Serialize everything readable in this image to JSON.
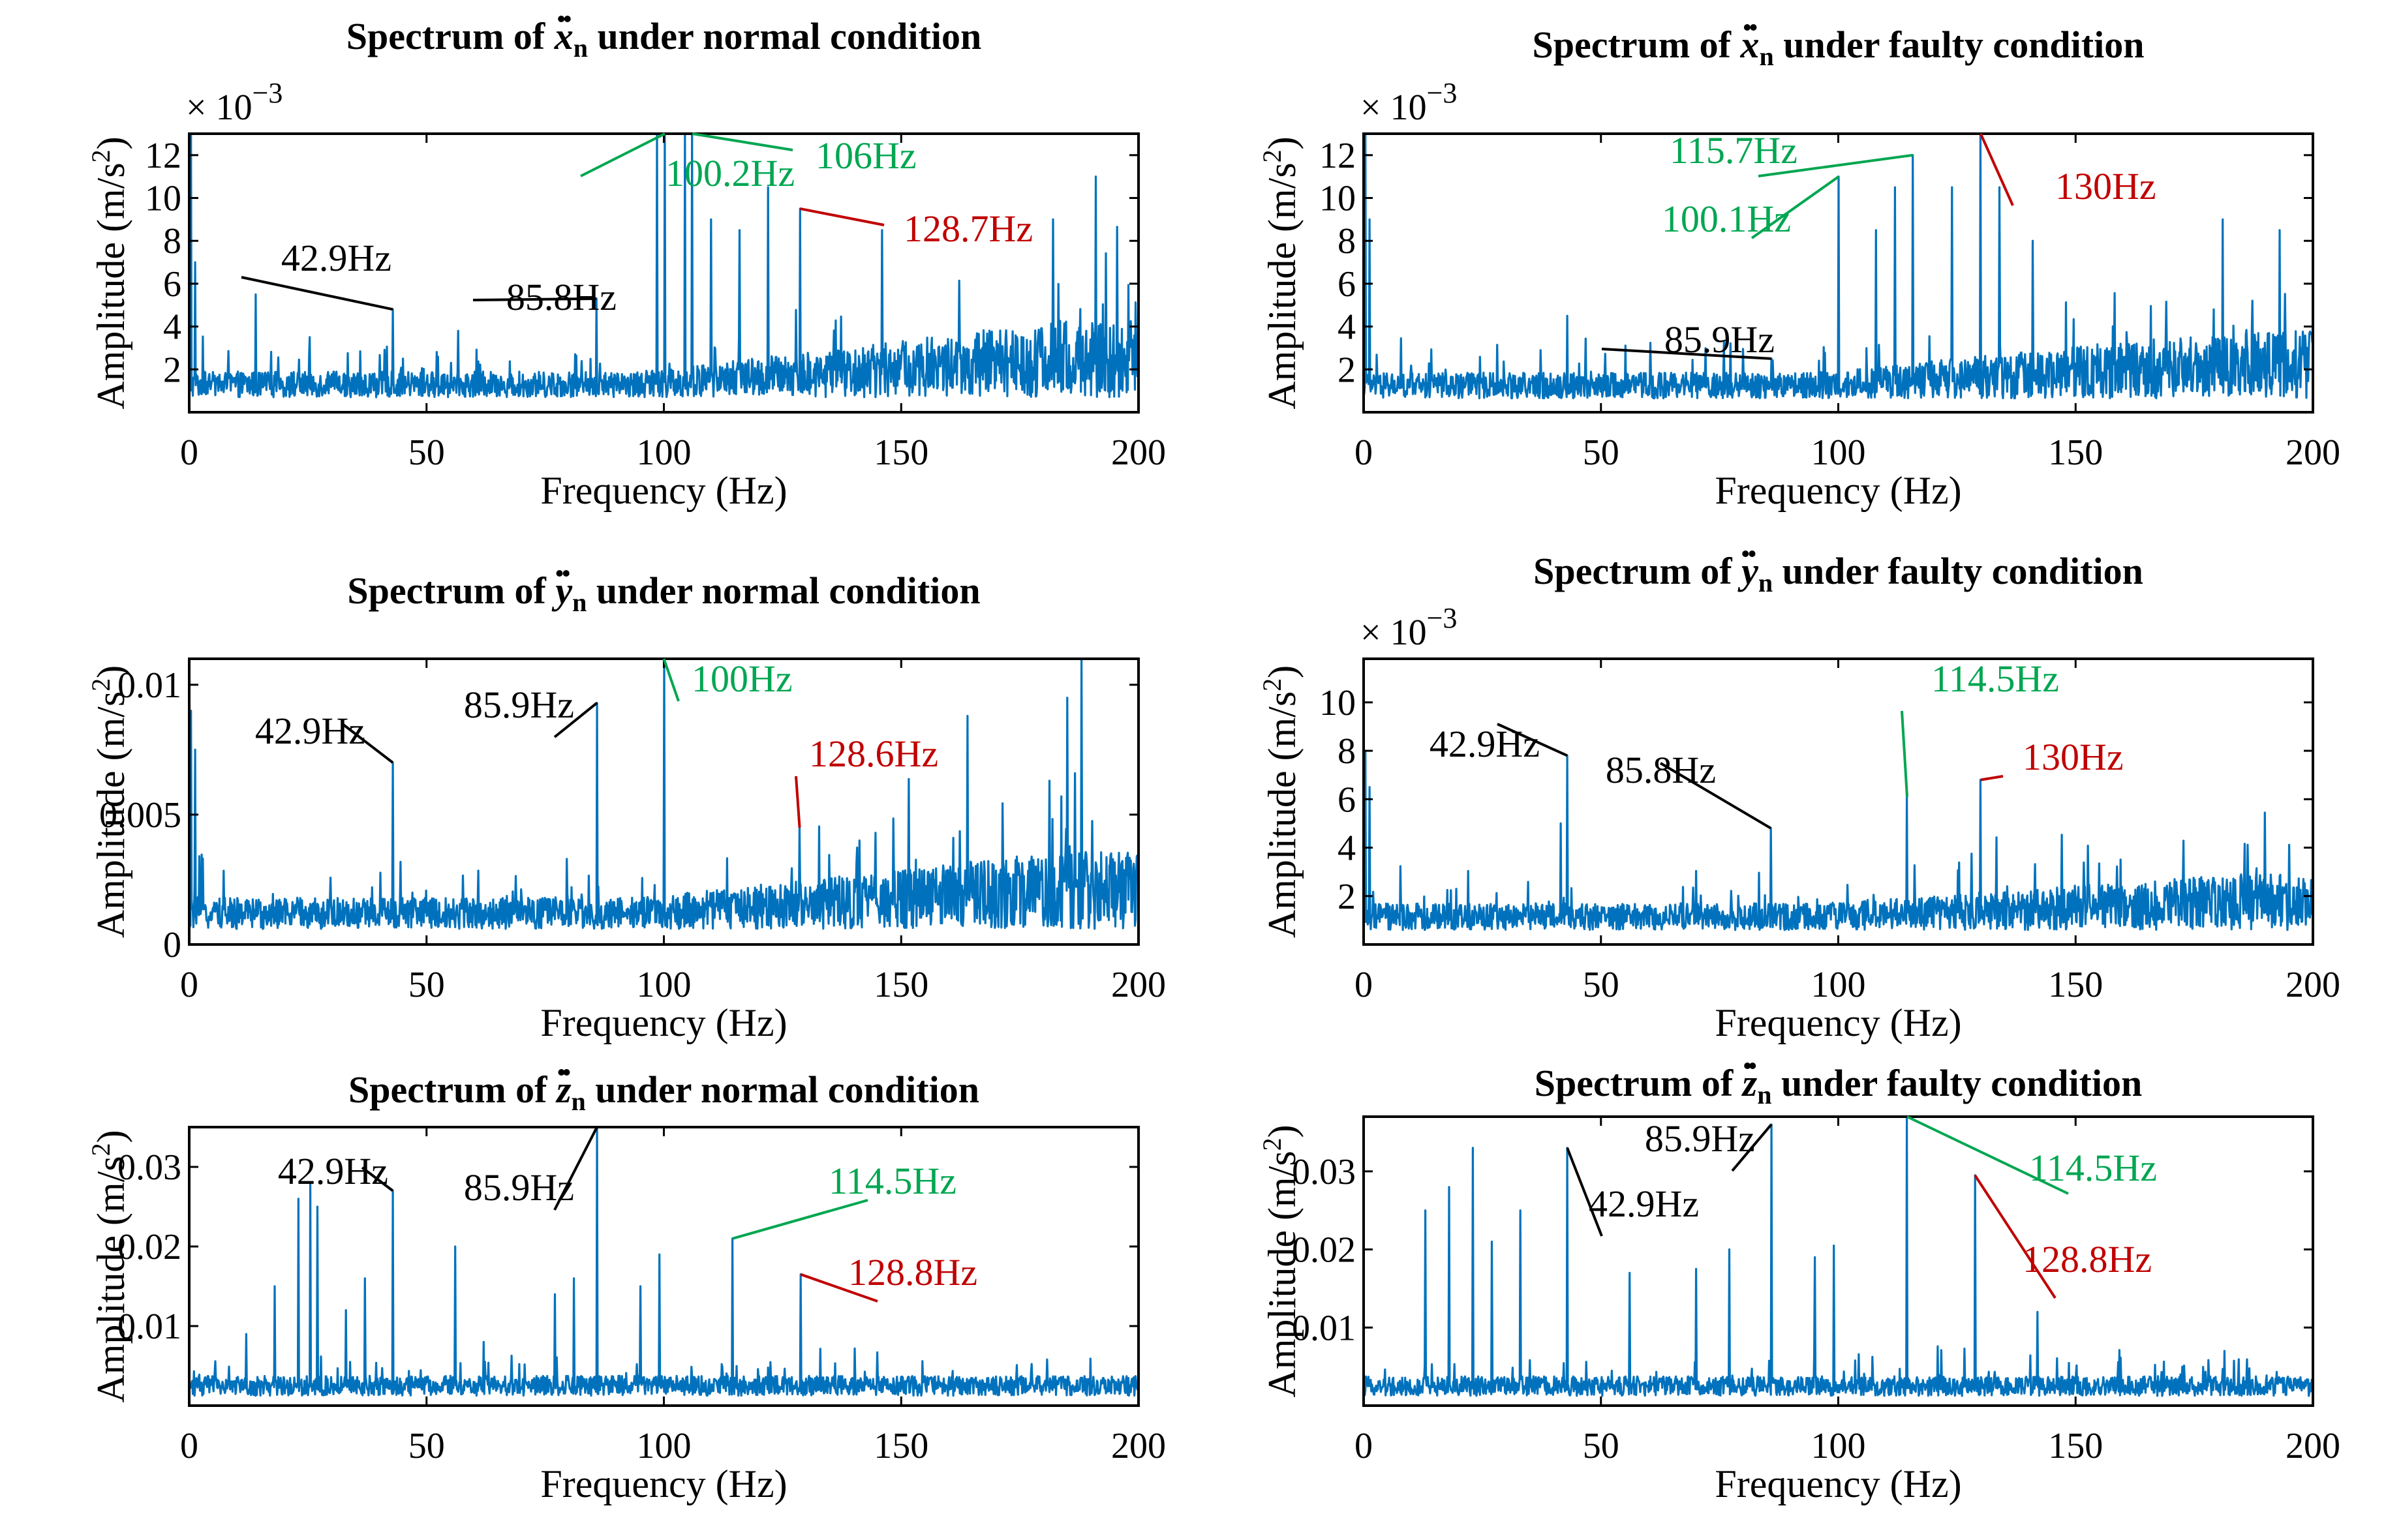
{
  "chart_data": [
    {
      "type": "line",
      "title": {
        "prefix": "Spectrum of ",
        "var": "x",
        "sub": "n",
        "suffix": " under normal condition"
      },
      "xlabel": "Frequency (Hz)",
      "ylabel": "Amplitude (m/s2)",
      "xlim": [
        0,
        200
      ],
      "ylim": [
        0,
        0.013
      ],
      "yscale_label": "× 10−3",
      "xticks": [
        "0",
        "50",
        "100",
        "150",
        "200"
      ],
      "yticks": [
        {
          "v": 0.002,
          "label": "2"
        },
        {
          "v": 0.004,
          "label": "4"
        },
        {
          "v": 0.006,
          "label": "6"
        },
        {
          "v": 0.008,
          "label": "8"
        },
        {
          "v": 0.01,
          "label": "10"
        },
        {
          "v": 0.012,
          "label": "12"
        }
      ],
      "noise": {
        "base": 0.0014,
        "amp": 0.0012,
        "rise": 0.0024
      },
      "peaks": [
        [
          0.4,
          0.013
        ],
        [
          1.2,
          0.007
        ],
        [
          14,
          0.0055
        ],
        [
          42.9,
          0.0048
        ],
        [
          85.8,
          0.0053
        ],
        [
          98.5,
          0.013
        ],
        [
          100.2,
          0.013
        ],
        [
          104.5,
          0.013
        ],
        [
          106,
          0.013
        ],
        [
          110,
          0.009
        ],
        [
          116,
          0.0085
        ],
        [
          122,
          0.0105
        ],
        [
          128.7,
          0.0095
        ],
        [
          146,
          0.0085
        ],
        [
          182,
          0.009
        ],
        [
          191,
          0.011
        ]
      ],
      "annotations": [
        {
          "label": "42.9Hz",
          "x": 42.9,
          "color": "#000000"
        },
        {
          "label": "85.8Hz",
          "x": 85.8,
          "color": "#000000"
        },
        {
          "label": "100.2Hz",
          "x": 100.2,
          "color": "#00a651"
        },
        {
          "label": "106Hz",
          "x": 106,
          "color": "#00a651"
        },
        {
          "label": "128.7Hz",
          "x": 128.7,
          "color": "#c00000"
        }
      ]
    },
    {
      "type": "line",
      "title": {
        "prefix": "Spectrum of ",
        "var": "x",
        "sub": "n",
        "suffix": " under faulty condition"
      },
      "xlabel": "Frequency (Hz)",
      "ylabel": "Amplitude (m/s2)",
      "xlim": [
        0,
        200
      ],
      "ylim": [
        0,
        0.013
      ],
      "yscale_label": "× 10−3",
      "xticks": [
        "0",
        "50",
        "100",
        "150",
        "200"
      ],
      "yticks": [
        {
          "v": 0.002,
          "label": "2"
        },
        {
          "v": 0.004,
          "label": "4"
        },
        {
          "v": 0.006,
          "label": "6"
        },
        {
          "v": 0.008,
          "label": "8"
        },
        {
          "v": 0.01,
          "label": "10"
        },
        {
          "v": 0.012,
          "label": "12"
        }
      ],
      "noise": {
        "base": 0.0013,
        "amp": 0.0012,
        "rise": 0.002
      },
      "peaks": [
        [
          0.4,
          0.013
        ],
        [
          1.2,
          0.009
        ],
        [
          42.9,
          0.0045
        ],
        [
          85.9,
          0.0025
        ],
        [
          100.1,
          0.011
        ],
        [
          108,
          0.0085
        ],
        [
          112,
          0.0105
        ],
        [
          115.7,
          0.012
        ],
        [
          124,
          0.0105
        ],
        [
          130,
          0.013
        ],
        [
          134,
          0.0105
        ],
        [
          141,
          0.008
        ],
        [
          181,
          0.009
        ],
        [
          193,
          0.0085
        ]
      ],
      "annotations": [
        {
          "label": "85.9Hz",
          "x": 85.9,
          "color": "#000000"
        },
        {
          "label": "100.1Hz",
          "x": 100.1,
          "color": "#00a651"
        },
        {
          "label": "115.7Hz",
          "x": 115.7,
          "color": "#00a651"
        },
        {
          "label": "130Hz",
          "x": 130,
          "color": "#c00000"
        }
      ]
    },
    {
      "type": "line",
      "title": {
        "prefix": "Spectrum of ",
        "var": "y",
        "sub": "n",
        "suffix": " under normal condition"
      },
      "xlabel": "Frequency (Hz)",
      "ylabel": "Amplitude (m/s2)",
      "xlim": [
        0,
        200
      ],
      "ylim": [
        0,
        0.011
      ],
      "yscale_label": "",
      "xticks": [
        "0",
        "50",
        "100",
        "150",
        "200"
      ],
      "yticks": [
        {
          "v": 0,
          "label": "0"
        },
        {
          "v": 0.005,
          "label": "0.005"
        },
        {
          "v": 0.01,
          "label": "0.01"
        }
      ],
      "noise": {
        "base": 0.0012,
        "amp": 0.0012,
        "rise": 0.0018
      },
      "peaks": [
        [
          0.4,
          0.009
        ],
        [
          1.2,
          0.0075
        ],
        [
          42.9,
          0.007
        ],
        [
          85.9,
          0.0093
        ],
        [
          100,
          0.011
        ],
        [
          128.6,
          0.0045
        ],
        [
          164,
          0.0088
        ],
        [
          185,
          0.0095
        ],
        [
          188,
          0.011
        ]
      ],
      "annotations": [
        {
          "label": "42.9Hz",
          "x": 42.9,
          "color": "#000000"
        },
        {
          "label": "85.9Hz",
          "x": 85.9,
          "color": "#000000"
        },
        {
          "label": "100Hz",
          "x": 100,
          "color": "#00a651"
        },
        {
          "label": "128.6Hz",
          "x": 128.6,
          "color": "#c00000"
        }
      ]
    },
    {
      "type": "line",
      "title": {
        "prefix": "Spectrum of ",
        "var": "y",
        "sub": "n",
        "suffix": " under faulty condition"
      },
      "xlabel": "Frequency (Hz)",
      "ylabel": "Amplitude (m/s2)",
      "xlim": [
        0,
        200
      ],
      "ylim": [
        0,
        0.0118
      ],
      "yscale_label": "× 10−3",
      "xticks": [
        "0",
        "50",
        "100",
        "150",
        "200"
      ],
      "yticks": [
        {
          "v": 0.002,
          "label": "2"
        },
        {
          "v": 0.004,
          "label": "4"
        },
        {
          "v": 0.006,
          "label": "6"
        },
        {
          "v": 0.008,
          "label": "8"
        },
        {
          "v": 0.01,
          "label": "10"
        }
      ],
      "noise": {
        "base": 0.0012,
        "amp": 0.0011,
        "rise": 0.0012
      },
      "peaks": [
        [
          0.4,
          0.008
        ],
        [
          1.2,
          0.0065
        ],
        [
          41.5,
          0.005
        ],
        [
          42.9,
          0.0078
        ],
        [
          85.8,
          0.0048
        ],
        [
          114.5,
          0.0061
        ],
        [
          130,
          0.0068
        ]
      ],
      "annotations": [
        {
          "label": "42.9Hz",
          "x": 42.9,
          "color": "#000000"
        },
        {
          "label": "85.8Hz",
          "x": 85.8,
          "color": "#000000"
        },
        {
          "label": "114.5Hz",
          "x": 114.5,
          "color": "#00a651"
        },
        {
          "label": "130Hz",
          "x": 130,
          "color": "#c00000"
        }
      ]
    },
    {
      "type": "line",
      "title": {
        "prefix": "Spectrum of ",
        "var": "z",
        "sub": "n",
        "suffix": " under normal condition"
      },
      "xlabel": "Frequency (Hz)",
      "ylabel": "Amplitude (m/s2)",
      "xlim": [
        0,
        200
      ],
      "ylim": [
        0,
        0.035
      ],
      "yscale_label": "",
      "xticks": [
        "0",
        "50",
        "100",
        "150",
        "200"
      ],
      "yticks": [
        {
          "v": 0.01,
          "label": "0.01"
        },
        {
          "v": 0.02,
          "label": "0.02"
        },
        {
          "v": 0.03,
          "label": "0.03"
        }
      ],
      "noise": {
        "base": 0.0025,
        "amp": 0.0025,
        "rise": 0.0
      },
      "peaks": [
        [
          12,
          0.009
        ],
        [
          18,
          0.015
        ],
        [
          23,
          0.026
        ],
        [
          25.5,
          0.028
        ],
        [
          27,
          0.025
        ],
        [
          33,
          0.012
        ],
        [
          37,
          0.016
        ],
        [
          42.9,
          0.027
        ],
        [
          56,
          0.02
        ],
        [
          62,
          0.008
        ],
        [
          77,
          0.014
        ],
        [
          81,
          0.016
        ],
        [
          85.9,
          0.035
        ],
        [
          95,
          0.015
        ],
        [
          99,
          0.019
        ],
        [
          114.5,
          0.021
        ],
        [
          128.8,
          0.0165
        ]
      ],
      "annotations": [
        {
          "label": "42.9Hz",
          "x": 42.9,
          "color": "#000000"
        },
        {
          "label": "85.9Hz",
          "x": 85.9,
          "color": "#000000"
        },
        {
          "label": "114.5Hz",
          "x": 114.5,
          "color": "#00a651"
        },
        {
          "label": "128.8Hz",
          "x": 128.8,
          "color": "#c00000"
        }
      ]
    },
    {
      "type": "line",
      "title": {
        "prefix": "Spectrum of ",
        "var": "z",
        "sub": "n",
        "suffix": " under faulty condition"
      },
      "xlabel": "Frequency (Hz)",
      "ylabel": "Amplitude (m/s2)",
      "xlim": [
        0,
        200
      ],
      "ylim": [
        0,
        0.037
      ],
      "yscale_label": "",
      "xticks": [
        "0",
        "50",
        "100",
        "150",
        "200"
      ],
      "yticks": [
        {
          "v": 0.01,
          "label": "0.01"
        },
        {
          "v": 0.02,
          "label": "0.02"
        },
        {
          "v": 0.03,
          "label": "0.03"
        }
      ],
      "noise": {
        "base": 0.0025,
        "amp": 0.0025,
        "rise": 0.0
      },
      "peaks": [
        [
          13,
          0.025
        ],
        [
          18,
          0.028
        ],
        [
          23,
          0.033
        ],
        [
          27,
          0.021
        ],
        [
          33,
          0.025
        ],
        [
          42.9,
          0.033
        ],
        [
          56,
          0.017
        ],
        [
          70,
          0.0175
        ],
        [
          77,
          0.02
        ],
        [
          85.9,
          0.036
        ],
        [
          95,
          0.019
        ],
        [
          99,
          0.0205
        ],
        [
          114.5,
          0.037
        ],
        [
          128.8,
          0.0295
        ],
        [
          142,
          0.012
        ]
      ],
      "annotations": [
        {
          "label": "85.9Hz",
          "x": 85.9,
          "color": "#000000"
        },
        {
          "label": "42.9Hz",
          "x": 42.9,
          "color": "#000000"
        },
        {
          "label": "114.5Hz",
          "x": 114.5,
          "color": "#00a651"
        },
        {
          "label": "128.8Hz",
          "x": 128.8,
          "color": "#c00000"
        }
      ]
    }
  ]
}
